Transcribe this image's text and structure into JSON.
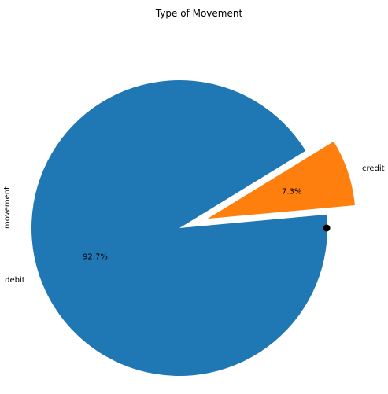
{
  "chart_data": {
    "type": "pie",
    "title": "Type of Movement",
    "ylabel": "movement",
    "slices": [
      {
        "label": "debit",
        "value": 92.7,
        "pct_label": "92.7%",
        "color": "#1f77b4",
        "explode": 0
      },
      {
        "label": "credit",
        "value": 7.3,
        "pct_label": "7.3%",
        "color": "#ff7f0e",
        "explode": 0.2
      }
    ],
    "start_angle_deg": 31.5,
    "marker": {
      "shape": "dot",
      "color": "#000000"
    }
  }
}
